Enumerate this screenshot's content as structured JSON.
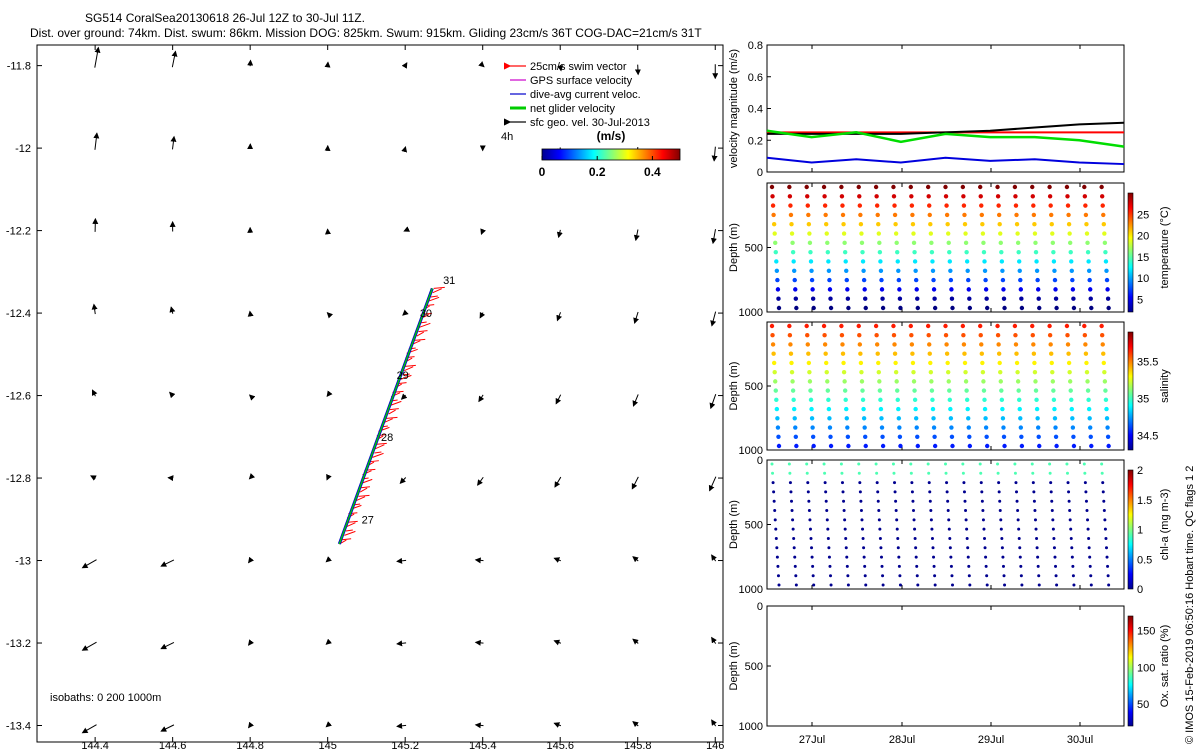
{
  "header": {
    "line1": "SG514 CoralSea20130618 26-Jul 12Z to 30-Jul 11Z.",
    "line2": "Dist. over ground: 74km. Dist. swum: 86km. Mission DOG: 825km. Swum: 915km. Gliding 23cm/s 36T COG-DAC=21cm/s 31T"
  },
  "copyright": "© IMOS 15-Feb-2019 06:50:16 Hobart time. QC flags 1  2",
  "chart_data": [
    {
      "type": "map-vectors",
      "xlim": [
        144.25,
        146.02
      ],
      "ylim": [
        -13.44,
        -11.75
      ],
      "x_ticks": [
        "144.4",
        "144.6",
        "144.8",
        "145",
        "145.2",
        "145.4",
        "145.6",
        "145.8",
        "146"
      ],
      "x_tick_values": [
        144.4,
        144.6,
        144.8,
        145.0,
        145.2,
        145.4,
        145.6,
        145.8,
        146.0
      ],
      "y_ticks": [
        "-11.8",
        "-12",
        "-12.2",
        "-12.4",
        "-12.6",
        "-12.8",
        "-13",
        "-13.2",
        "-13.4"
      ],
      "y_tick_values": [
        -11.8,
        -12.0,
        -12.2,
        -12.4,
        -12.6,
        -12.8,
        -13.0,
        -13.2,
        -13.4
      ],
      "legend": [
        {
          "label": "25cm/s swim vector",
          "color": "#ff0000"
        },
        {
          "label": "GPS surface velocity",
          "color": "#cc00cc"
        },
        {
          "label": "dive-avg current veloc.",
          "color": "#0000cc"
        },
        {
          "label": "net glider velocity",
          "color": "#00cc00"
        },
        {
          "label": "sfc geo. vel. 30-Jul-2013",
          "color": "#000000"
        }
      ],
      "legend_extra": "4h",
      "colorbar": {
        "title": "(m/s)",
        "ticks": [
          "0",
          "0.2",
          "0.4"
        ],
        "tick_values": [
          0,
          0.2,
          0.4
        ],
        "range": [
          0,
          0.5
        ]
      },
      "isobaths_label": "isobaths:  0   200  1000m",
      "day_labels": [
        {
          "label": "27",
          "lon": 145.08,
          "lat": -12.9
        },
        {
          "label": "28",
          "lon": 145.13,
          "lat": -12.7
        },
        {
          "label": "29",
          "lon": 145.17,
          "lat": -12.55
        },
        {
          "label": "30",
          "lon": 145.23,
          "lat": -12.4
        },
        {
          "label": "31",
          "lon": 145.29,
          "lat": -12.32
        }
      ],
      "track": {
        "start": [
          145.03,
          -12.96
        ],
        "end": [
          145.27,
          -12.34
        ]
      },
      "vector_grid_lons": [
        144.4,
        144.6,
        144.8,
        145.0,
        145.2,
        145.4,
        145.6,
        145.8,
        146.0
      ],
      "vector_grid_lats": [
        -11.8,
        -12.0,
        -12.2,
        -12.4,
        -12.6,
        -12.8,
        -13.0,
        -13.2,
        -13.4
      ]
    },
    {
      "type": "line",
      "ylabel": "velocity magnitude (m/s)",
      "ylim": [
        0,
        0.8
      ],
      "y_ticks": [
        "0",
        "0.2",
        "0.4",
        "0.6",
        "0.8"
      ],
      "series": [
        {
          "color": "#ff0000",
          "values": [
            0.25,
            0.25,
            0.25,
            0.25,
            0.25,
            0.25,
            0.25,
            0.25,
            0.25
          ]
        },
        {
          "color": "#000000",
          "values": [
            0.24,
            0.24,
            0.24,
            0.24,
            0.25,
            0.26,
            0.28,
            0.3,
            0.31
          ]
        },
        {
          "color": "#00dd00",
          "values": [
            0.26,
            0.22,
            0.25,
            0.19,
            0.24,
            0.22,
            0.22,
            0.2,
            0.16
          ]
        },
        {
          "color": "#0000dd",
          "values": [
            0.09,
            0.06,
            0.08,
            0.06,
            0.09,
            0.07,
            0.08,
            0.06,
            0.05
          ]
        }
      ]
    },
    {
      "type": "scatter",
      "ylabel": "Depth (m)",
      "y_ticks": [
        "",
        "500",
        "1000"
      ],
      "cbar_label": "temperature (°C)",
      "cbar_ticks": [
        "5",
        "10",
        "15",
        "20",
        "25"
      ],
      "cbar_range": [
        2,
        30
      ]
    },
    {
      "type": "scatter",
      "ylabel": "Depth (m)",
      "y_ticks": [
        "",
        "500",
        "1000"
      ],
      "cbar_label": "salinity",
      "cbar_ticks": [
        "34.5",
        "35",
        "35.5"
      ],
      "cbar_range": [
        34.3,
        35.9
      ]
    },
    {
      "type": "scatter",
      "ylabel": "Depth (m)",
      "y_ticks": [
        "0",
        "500",
        "1000"
      ],
      "cbar_label": "chl-a (mg m-3)",
      "cbar_ticks": [
        "0",
        "0.5",
        "1",
        "1.5",
        "2"
      ],
      "cbar_range": [
        0,
        2
      ]
    },
    {
      "type": "scatter",
      "ylabel": "Depth (m)",
      "y_ticks": [
        "0",
        "500",
        "1000"
      ],
      "cbar_label": "Ox. sat. ratio (%)",
      "cbar_ticks": [
        "50",
        "100",
        "150"
      ],
      "cbar_range": [
        20,
        170
      ]
    },
    {
      "type": "time-axis",
      "x_ticks": [
        "27Jul",
        "28Jul",
        "29Jul",
        "30Jul"
      ]
    }
  ]
}
